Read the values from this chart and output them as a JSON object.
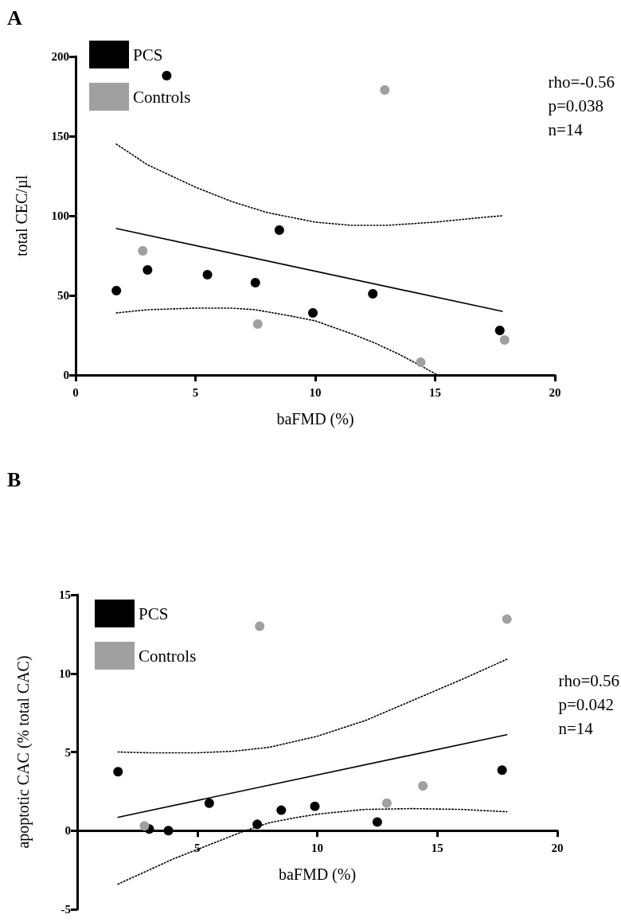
{
  "chart_data": [
    {
      "type": "scatter",
      "title": "A",
      "xlabel": "baFMD (%)",
      "ylabel": "total CEC/µl",
      "annotations": [
        "rho=-0.56\np=0.038\nn=14"
      ],
      "xlim": [
        0,
        20
      ],
      "xticks": [
        0,
        5,
        10,
        15,
        20
      ],
      "ylim": [
        0,
        200
      ],
      "yticks": [
        0,
        50,
        100,
        150,
        200
      ],
      "grid": false,
      "legend": "top left",
      "marker": "circle",
      "series": [
        {
          "name": "PCS",
          "color": "#000000",
          "x": [
            1.7,
            3.0,
            3.8,
            5.5,
            7.5,
            8.5,
            9.9,
            12.4,
            17.7
          ],
          "values": [
            53,
            66,
            188,
            63,
            58,
            91,
            39,
            51,
            28
          ]
        },
        {
          "name": "Controls",
          "color": "#a0a0a0",
          "x": [
            2.8,
            7.6,
            12.9,
            14.4,
            17.9
          ],
          "values": [
            78,
            32,
            179,
            8,
            22
          ]
        },
        {
          "type": "line",
          "color": "#000000",
          "marker": "none",
          "line_style": "solid",
          "x": [
            1.7,
            17.8
          ],
          "values": [
            92,
            40
          ]
        },
        {
          "type": "line",
          "color": "#000000",
          "marker": "none",
          "line_style": "dotted",
          "x": [
            1.7,
            3,
            5,
            6.5,
            8,
            10,
            11.5,
            13,
            15,
            17,
            17.8
          ],
          "values": [
            145,
            132,
            118,
            109,
            102,
            96,
            94,
            94,
            96,
            99,
            100
          ]
        },
        {
          "type": "line",
          "color": "#000000",
          "marker": "none",
          "line_style": "dotted",
          "x": [
            1.7,
            3,
            5,
            6.5,
            7.5,
            9,
            10,
            11.5,
            12.5,
            13.5,
            14.5,
            15.1
          ],
          "values": [
            39,
            41,
            42,
            42,
            41,
            37,
            34,
            26,
            20,
            13,
            5,
            0
          ]
        }
      ]
    },
    {
      "type": "scatter",
      "title": "B",
      "xlabel": "baFMD (%)",
      "ylabel": "apoptotic CAC (% total CAC)",
      "annotations": [
        "rho=0.56\np=0.042\nn=14"
      ],
      "xlim": [
        0,
        20
      ],
      "xticks": [
        5,
        10,
        15,
        20
      ],
      "ylim": [
        -5,
        15
      ],
      "yticks": [
        -5,
        0,
        5,
        10,
        15
      ],
      "grid": false,
      "legend": "top left",
      "marker": "circle",
      "series": [
        {
          "name": "PCS",
          "color": "#000000",
          "x": [
            1.7,
            3.0,
            3.8,
            5.5,
            7.5,
            8.5,
            9.9,
            12.5,
            17.7
          ],
          "values": [
            3.75,
            0.1,
            0.0,
            1.75,
            0.4,
            1.3,
            1.55,
            0.55,
            3.85
          ]
        },
        {
          "name": "Controls",
          "color": "#a0a0a0",
          "x": [
            2.8,
            7.6,
            12.9,
            14.4,
            17.9
          ],
          "values": [
            0.3,
            13.0,
            1.75,
            2.85,
            13.45
          ]
        },
        {
          "type": "line",
          "color": "#000000",
          "marker": "none",
          "line_style": "solid",
          "x": [
            1.7,
            17.9
          ],
          "values": [
            0.85,
            6.1
          ]
        },
        {
          "type": "line",
          "color": "#000000",
          "marker": "none",
          "line_style": "dotted",
          "x": [
            1.7,
            3,
            5,
            6.5,
            8,
            10,
            12,
            14,
            16,
            17.9
          ],
          "values": [
            5.0,
            4.95,
            4.95,
            5.05,
            5.3,
            6.0,
            7.0,
            8.3,
            9.6,
            10.9
          ]
        },
        {
          "type": "line",
          "color": "#000000",
          "marker": "none",
          "line_style": "dotted",
          "x": [
            1.7,
            3,
            4,
            5,
            6,
            7,
            8,
            9,
            10,
            12,
            14,
            16,
            17.9
          ],
          "values": [
            -3.4,
            -2.5,
            -1.8,
            -1.2,
            -0.6,
            0,
            0.5,
            0.8,
            1.05,
            1.35,
            1.4,
            1.35,
            1.2
          ]
        }
      ]
    }
  ]
}
